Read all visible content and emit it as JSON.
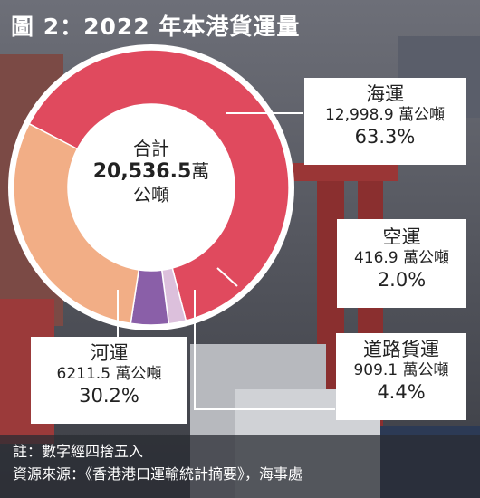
{
  "title": "圖 2：2022 年本港貨運量",
  "colors": {
    "sea": "#e04a5e",
    "river": "#f2ae86",
    "road": "#8a5fa8",
    "air": "#dcc0dc",
    "inner": "#ffffff",
    "ring": "#ffffff"
  },
  "chart_data": {
    "type": "pie",
    "title": "圖 2：2022 年本港貨運量",
    "total": {
      "label": "合計",
      "value": "20,536.5",
      "unit": "萬公噸"
    },
    "slices": [
      {
        "name": "海運",
        "value": 12998.9,
        "value_text": "12,998.9 萬公噸",
        "percent": 63.3,
        "percent_text": "63.3%"
      },
      {
        "name": "空運",
        "value": 416.9,
        "value_text": "416.9 萬公噸",
        "percent": 2.0,
        "percent_text": "2.0%"
      },
      {
        "name": "道路貨運",
        "value": 909.1,
        "value_text": "909.1 萬公噸",
        "percent": 4.4,
        "percent_text": "4.4%"
      },
      {
        "name": "河運",
        "value": 6211.5,
        "value_text": "6211.5 萬公噸",
        "percent": 30.2,
        "percent_text": "30.2%"
      }
    ]
  },
  "center": {
    "line1": "合計",
    "line2_number": "20,536.5",
    "line2_unit": "萬",
    "line3": "公噸"
  },
  "footer": {
    "note": "註：數字經四捨五入",
    "source": "資源來源：《香港港口運輸統計摘要》，海事處"
  }
}
